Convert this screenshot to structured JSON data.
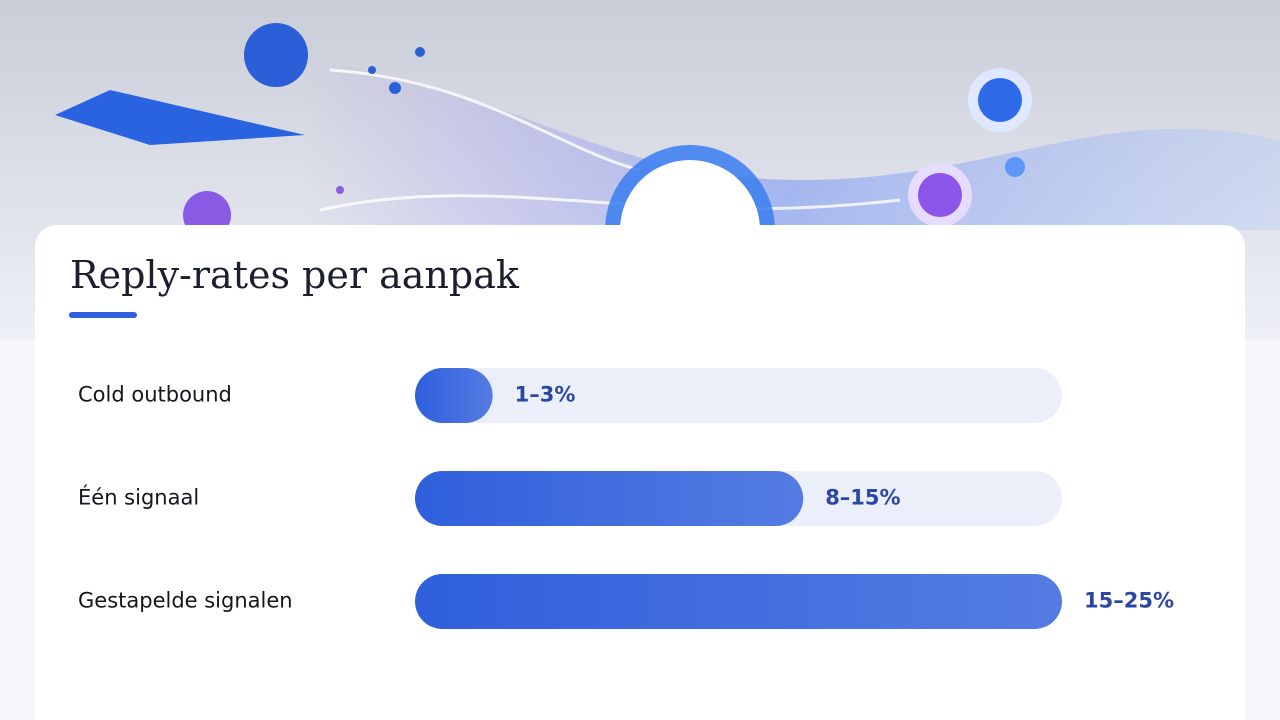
{
  "chart_data": {
    "type": "bar",
    "orientation": "horizontal",
    "title": "Reply-rates per aanpak",
    "categories": [
      "Cold outbound",
      "Één signaal",
      "Gestapelde signalen"
    ],
    "values": [
      3,
      15,
      25
    ],
    "value_labels": [
      "1–3%",
      "8–15%",
      "15–25%"
    ],
    "color": "#2f5fdc",
    "xlim": [
      0,
      25
    ]
  }
}
